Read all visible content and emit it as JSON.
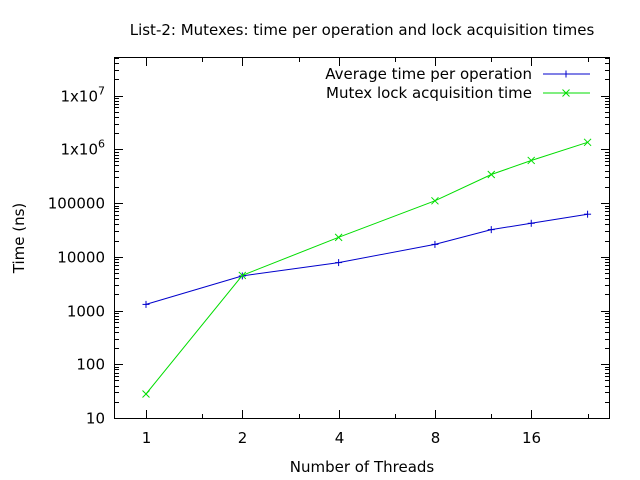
{
  "chart_data": {
    "type": "line",
    "title": "List-2: Mutexes: time per operation and lock acquisition times",
    "xlabel": "Number of Threads",
    "ylabel": "Time (ns)",
    "x_scale": "log2",
    "y_scale": "log10",
    "xlim": [
      0.8,
      28
    ],
    "ylim": [
      10,
      50000000
    ],
    "x_ticks": [
      1,
      2,
      4,
      8,
      16
    ],
    "x_tick_labels": [
      "1",
      "2",
      "4",
      "8",
      "16"
    ],
    "y_ticks": [
      10,
      100,
      1000,
      10000,
      100000,
      1000000,
      10000000
    ],
    "y_tick_labels": [
      {
        "base": "10",
        "sup": ""
      },
      {
        "base": "100",
        "sup": ""
      },
      {
        "base": "1000",
        "sup": ""
      },
      {
        "base": "10000",
        "sup": ""
      },
      {
        "base": "100000",
        "sup": ""
      },
      {
        "base": "1x10",
        "sup": "6"
      },
      {
        "base": "1x10",
        "sup": "7"
      }
    ],
    "grid": false,
    "legend_position": "top-right",
    "series": [
      {
        "name": "Average time per operation",
        "color": "#0000cc",
        "marker": "plus",
        "points": [
          {
            "x": 1,
            "y": 1300
          },
          {
            "x": 2,
            "y": 4400
          },
          {
            "x": 4,
            "y": 7800
          },
          {
            "x": 8,
            "y": 17000
          },
          {
            "x": 12,
            "y": 32000
          },
          {
            "x": 16,
            "y": 42000
          },
          {
            "x": 24,
            "y": 62000
          }
        ]
      },
      {
        "name": "Mutex lock acquisition time",
        "color": "#00dd00",
        "marker": "cross",
        "points": [
          {
            "x": 1,
            "y": 28
          },
          {
            "x": 2,
            "y": 4500
          },
          {
            "x": 4,
            "y": 23000
          },
          {
            "x": 8,
            "y": 110000
          },
          {
            "x": 12,
            "y": 340000
          },
          {
            "x": 16,
            "y": 620000
          },
          {
            "x": 24,
            "y": 1350000
          }
        ]
      }
    ]
  }
}
